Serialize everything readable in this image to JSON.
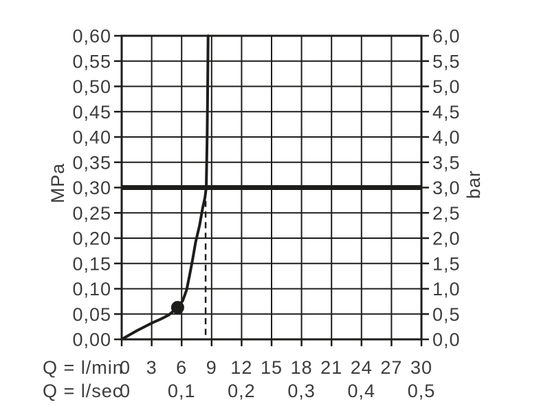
{
  "chart_data": {
    "type": "line",
    "grid": true,
    "background": "#ffffff",
    "ink_color": "#1d1d1b",
    "text_color": "#3d3d3d",
    "x_axis": {
      "primary_label": "Q = l/min",
      "primary_ticks": [
        "0",
        "3",
        "6",
        "9",
        "12",
        "15",
        "18",
        "21",
        "24",
        "27",
        "30"
      ],
      "primary_range": [
        0,
        30
      ],
      "primary_step": 3,
      "secondary_label": "Q = l/sec",
      "secondary_ticks": [
        "0",
        "0,1",
        "0,2",
        "0,3",
        "0,4",
        "0,5"
      ],
      "secondary_range": [
        0,
        0.5
      ],
      "secondary_step": 0.1
    },
    "y_axis_left": {
      "label": "MPa",
      "ticks": [
        "0,60",
        "0,55",
        "0,50",
        "0,45",
        "0,40",
        "0,35",
        "0,30",
        "0,25",
        "0,20",
        "0,15",
        "0,10",
        "0,05",
        "0,00"
      ],
      "range": [
        0,
        0.6
      ],
      "step": 0.05
    },
    "y_axis_right": {
      "label": "bar",
      "ticks": [
        "6,0",
        "5,5",
        "5,0",
        "4,5",
        "4,0",
        "3,5",
        "3,0",
        "2,5",
        "2,0",
        "1,5",
        "1,0",
        "0,5",
        "0,0"
      ],
      "range": [
        0,
        6
      ],
      "step": 0.5
    },
    "series": [
      {
        "name": "flow-pressure-curve",
        "points_lmin_mpa": [
          [
            0,
            0
          ],
          [
            0.8,
            0.009
          ],
          [
            1.6,
            0.018
          ],
          [
            2.4,
            0.026
          ],
          [
            3.1,
            0.033
          ],
          [
            3.9,
            0.04
          ],
          [
            4.7,
            0.048
          ],
          [
            5.6,
            0.063
          ],
          [
            6.1,
            0.076
          ],
          [
            6.5,
            0.098
          ],
          [
            6.8,
            0.127
          ],
          [
            7.1,
            0.158
          ],
          [
            7.4,
            0.192
          ],
          [
            7.8,
            0.226
          ],
          [
            8.1,
            0.259
          ],
          [
            8.33,
            0.28
          ],
          [
            8.46,
            0.3
          ],
          [
            8.55,
            0.4
          ],
          [
            8.61,
            0.5
          ],
          [
            8.65,
            0.6
          ]
        ]
      }
    ],
    "marker_point": {
      "lmin": 5.6,
      "mpa": 0.063
    },
    "reference_line": {
      "mpa": 0.3,
      "bar": 3.0,
      "style": "thick-solid-horizontal"
    },
    "dashed_guide": {
      "lmin": 8.4,
      "from_mpa": 0,
      "to_mpa": 0.295,
      "style": "dashed-vertical"
    }
  }
}
